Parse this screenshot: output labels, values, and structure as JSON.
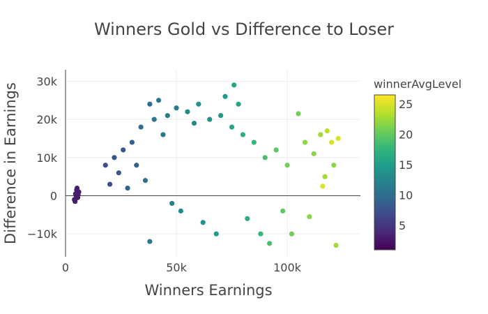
{
  "chart_data": {
    "type": "scatter",
    "title": "Winners Gold vs Difference to Loser",
    "xlabel": "Winners Earnings",
    "ylabel": "Difference in Earnings",
    "xlim": [
      0,
      133000
    ],
    "ylim": [
      -16000,
      33000
    ],
    "xticks": [
      0,
      50000,
      100000
    ],
    "xtick_labels": [
      "0",
      "50k",
      "100k"
    ],
    "yticks": [
      -10000,
      0,
      10000,
      20000,
      30000
    ],
    "ytick_labels": [
      "−10k",
      "0",
      "10k",
      "20k",
      "30k"
    ],
    "grid": true,
    "colorbar": {
      "title": "winnerAvgLevel",
      "min": 1,
      "max": 26.5,
      "ticks": [
        5,
        10,
        15,
        20,
        25
      ],
      "tick_labels": [
        "5",
        "10",
        "15",
        "20",
        "25"
      ],
      "colorscale": "Viridis",
      "stops": [
        "#440154",
        "#482878",
        "#3e4989",
        "#31688e",
        "#26828e",
        "#1f9e89",
        "#35b779",
        "#6ece58",
        "#b5de2b",
        "#fde725"
      ]
    },
    "points": [
      {
        "x": 4000,
        "y": -1000,
        "c": 3
      },
      {
        "x": 4500,
        "y": 500,
        "c": 3
      },
      {
        "x": 5000,
        "y": 1500,
        "c": 3
      },
      {
        "x": 5500,
        "y": -500,
        "c": 3
      },
      {
        "x": 6000,
        "y": 1000,
        "c": 3
      },
      {
        "x": 4800,
        "y": 0,
        "c": 3
      },
      {
        "x": 5200,
        "y": 2000,
        "c": 3
      },
      {
        "x": 4300,
        "y": -1500,
        "c": 3
      },
      {
        "x": 5700,
        "y": 300,
        "c": 3
      },
      {
        "x": 18000,
        "y": 8000,
        "c": 7
      },
      {
        "x": 20000,
        "y": 3000,
        "c": 7
      },
      {
        "x": 22000,
        "y": 10000,
        "c": 8
      },
      {
        "x": 24000,
        "y": 6000,
        "c": 8
      },
      {
        "x": 26000,
        "y": 12000,
        "c": 8
      },
      {
        "x": 28000,
        "y": 2000,
        "c": 9
      },
      {
        "x": 30000,
        "y": 14000,
        "c": 9
      },
      {
        "x": 32000,
        "y": 8000,
        "c": 9
      },
      {
        "x": 34000,
        "y": 18000,
        "c": 10
      },
      {
        "x": 36000,
        "y": 4000,
        "c": 10
      },
      {
        "x": 38000,
        "y": 24000,
        "c": 10
      },
      {
        "x": 40000,
        "y": 20000,
        "c": 11
      },
      {
        "x": 42000,
        "y": 25000,
        "c": 11
      },
      {
        "x": 44000,
        "y": 16000,
        "c": 11
      },
      {
        "x": 46000,
        "y": 21000,
        "c": 12
      },
      {
        "x": 48000,
        "y": -2000,
        "c": 12
      },
      {
        "x": 50000,
        "y": 23000,
        "c": 12
      },
      {
        "x": 52000,
        "y": -4000,
        "c": 13
      },
      {
        "x": 55000,
        "y": 22000,
        "c": 13
      },
      {
        "x": 58000,
        "y": 19000,
        "c": 13
      },
      {
        "x": 60000,
        "y": 24000,
        "c": 14
      },
      {
        "x": 62000,
        "y": -7000,
        "c": 14
      },
      {
        "x": 65000,
        "y": 20000,
        "c": 14
      },
      {
        "x": 68000,
        "y": -10000,
        "c": 15
      },
      {
        "x": 70000,
        "y": 21000,
        "c": 15
      },
      {
        "x": 72000,
        "y": 26000,
        "c": 15
      },
      {
        "x": 75000,
        "y": 18000,
        "c": 16
      },
      {
        "x": 76000,
        "y": 29000,
        "c": 16
      },
      {
        "x": 78000,
        "y": 24000,
        "c": 16
      },
      {
        "x": 80000,
        "y": 16000,
        "c": 17
      },
      {
        "x": 82000,
        "y": -6000,
        "c": 17
      },
      {
        "x": 85000,
        "y": 14000,
        "c": 18
      },
      {
        "x": 88000,
        "y": -10000,
        "c": 18
      },
      {
        "x": 90000,
        "y": 10000,
        "c": 19
      },
      {
        "x": 92000,
        "y": -12500,
        "c": 19
      },
      {
        "x": 95000,
        "y": 12000,
        "c": 20
      },
      {
        "x": 98000,
        "y": -4000,
        "c": 20
      },
      {
        "x": 100000,
        "y": 8000,
        "c": 21
      },
      {
        "x": 102000,
        "y": -10000,
        "c": 21
      },
      {
        "x": 105000,
        "y": 21500,
        "c": 21
      },
      {
        "x": 108000,
        "y": 14000,
        "c": 22
      },
      {
        "x": 110000,
        "y": -5500,
        "c": 22
      },
      {
        "x": 112000,
        "y": 11000,
        "c": 22
      },
      {
        "x": 115000,
        "y": 16000,
        "c": 23
      },
      {
        "x": 117000,
        "y": 5000,
        "c": 23
      },
      {
        "x": 118000,
        "y": 17000,
        "c": 24
      },
      {
        "x": 120000,
        "y": 14000,
        "c": 25
      },
      {
        "x": 121000,
        "y": 8000,
        "c": 22
      },
      {
        "x": 122000,
        "y": -13000,
        "c": 23
      },
      {
        "x": 123000,
        "y": 15000,
        "c": 25
      },
      {
        "x": 116000,
        "y": 2500,
        "c": 25
      },
      {
        "x": 38000,
        "y": -12000,
        "c": 11
      }
    ]
  }
}
